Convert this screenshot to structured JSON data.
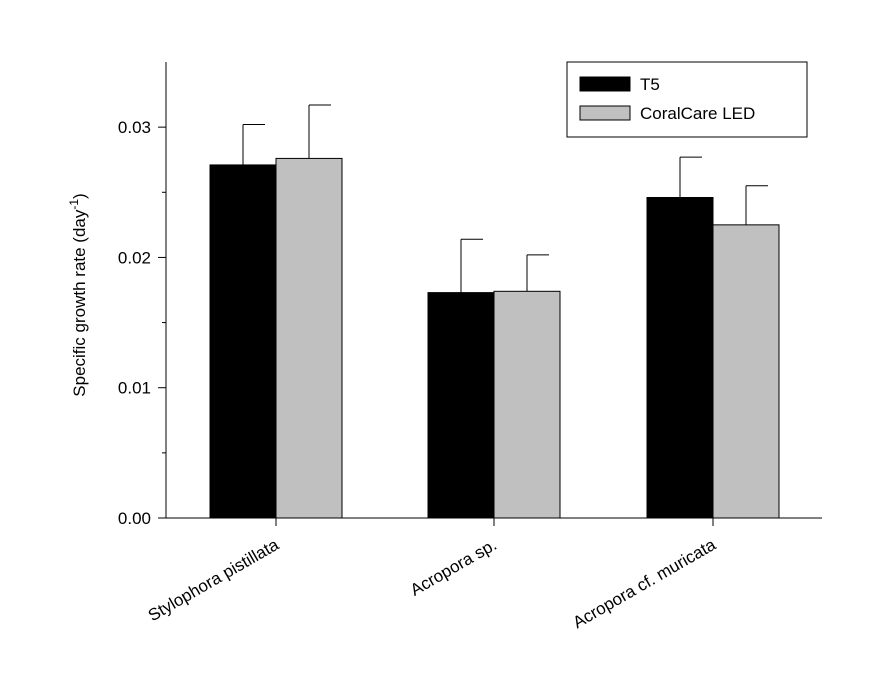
{
  "chart_data": {
    "type": "bar",
    "categories": [
      "Stylophora pistillata",
      "Acropora sp.",
      "Acropora cf. muricata"
    ],
    "series": [
      {
        "name": "T5",
        "values": [
          0.0271,
          0.0173,
          0.0246
        ],
        "errors": [
          0.0031,
          0.0041,
          0.0031
        ],
        "color": "#000000"
      },
      {
        "name": "CoralCare LED",
        "values": [
          0.0276,
          0.0174,
          0.0225
        ],
        "errors": [
          0.0041,
          0.0028,
          0.003
        ],
        "color": "#c0c0c0"
      }
    ],
    "title": "",
    "xlabel": "",
    "ylabel": "Specific growth rate (day",
    "ylabel_superscript": "-1",
    "ylabel_suffix": ")",
    "ylim": [
      0,
      0.035
    ],
    "yticks": [
      {
        "value": 0,
        "label": "0.00"
      },
      {
        "value": 0.01,
        "label": "0.01"
      },
      {
        "value": 0.02,
        "label": "0.02"
      },
      {
        "value": 0.03,
        "label": "0.03"
      }
    ],
    "legend": {
      "position": "top-right"
    },
    "grid": false
  }
}
